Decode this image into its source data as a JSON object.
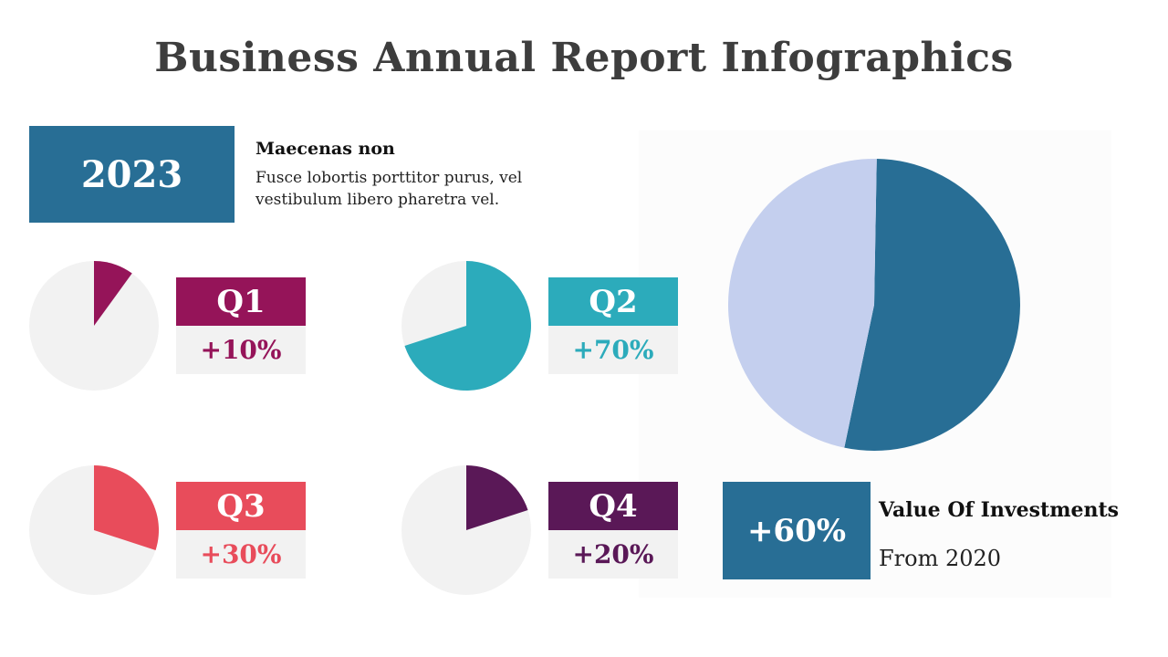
{
  "title": "Business Annual Report Infographics",
  "intro": {
    "year": "2023",
    "heading": "Maecenas non",
    "body": "Fusce lobortis porttitor purus, vel vestibulum libero pharetra vel."
  },
  "colors": {
    "track": "#f2f2f2",
    "q1": "#951459",
    "q2": "#2cabbb",
    "q3": "#e84c5b",
    "q4": "#5a1857",
    "main_dark": "#286e95",
    "main_light": "#c4cfee"
  },
  "investments": {
    "value": "+60%",
    "title": "Value Of Investments",
    "subtitle": "From 2020"
  },
  "chart_data": [
    {
      "type": "pie",
      "id": "q1",
      "label": "Q1",
      "value_label": "+10%",
      "value": 10,
      "color": "#951459"
    },
    {
      "type": "pie",
      "id": "q2",
      "label": "Q2",
      "value_label": "+70%",
      "value": 70,
      "color": "#2cabbb"
    },
    {
      "type": "pie",
      "id": "q3",
      "label": "Q3",
      "value_label": "+30%",
      "value": 30,
      "color": "#e84c5b"
    },
    {
      "type": "pie",
      "id": "q4",
      "label": "Q4",
      "value_label": "+20%",
      "value": 20,
      "color": "#5a1857"
    },
    {
      "type": "pie",
      "id": "main",
      "values": [
        53,
        47
      ],
      "colors": [
        "#286e95",
        "#c4cfee"
      ]
    }
  ]
}
